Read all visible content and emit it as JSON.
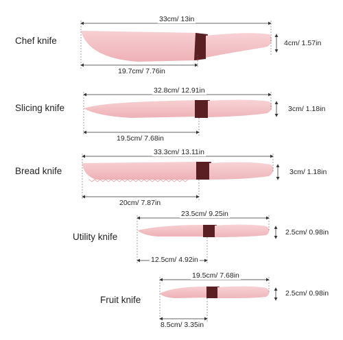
{
  "colors": {
    "blade": "#f2bcc0",
    "blade_light": "#f9d6d8",
    "handle": "#f3c3c7",
    "bolster": "#5a1f22",
    "dimension_line": "#333333",
    "background": "#ffffff"
  },
  "knives": [
    {
      "name": "Chef knife",
      "total": "33cm/ 13in",
      "blade": "19.7cm/ 7.76in",
      "height": "4cm/ 1.57in"
    },
    {
      "name": "Slicing knife",
      "total": "32.8cm/ 12.91in",
      "blade": "19.5cm/ 7.68in",
      "height": "3cm/ 1.18in"
    },
    {
      "name": "Bread knife",
      "total": "33.3cm/ 13.11in",
      "blade": "20cm/ 7.87in",
      "height": "3cm/ 1.18in"
    },
    {
      "name": "Utility knife",
      "total": "23.5cm/ 9.25in",
      "blade": "12.5cm/ 4.92in",
      "height": "2.5cm/ 0.98in"
    },
    {
      "name": "Fruit knife",
      "total": "19.5cm/ 7.68in",
      "blade": "8.5cm/ 3.35in",
      "height": "2.5cm/ 0.98in"
    }
  ]
}
